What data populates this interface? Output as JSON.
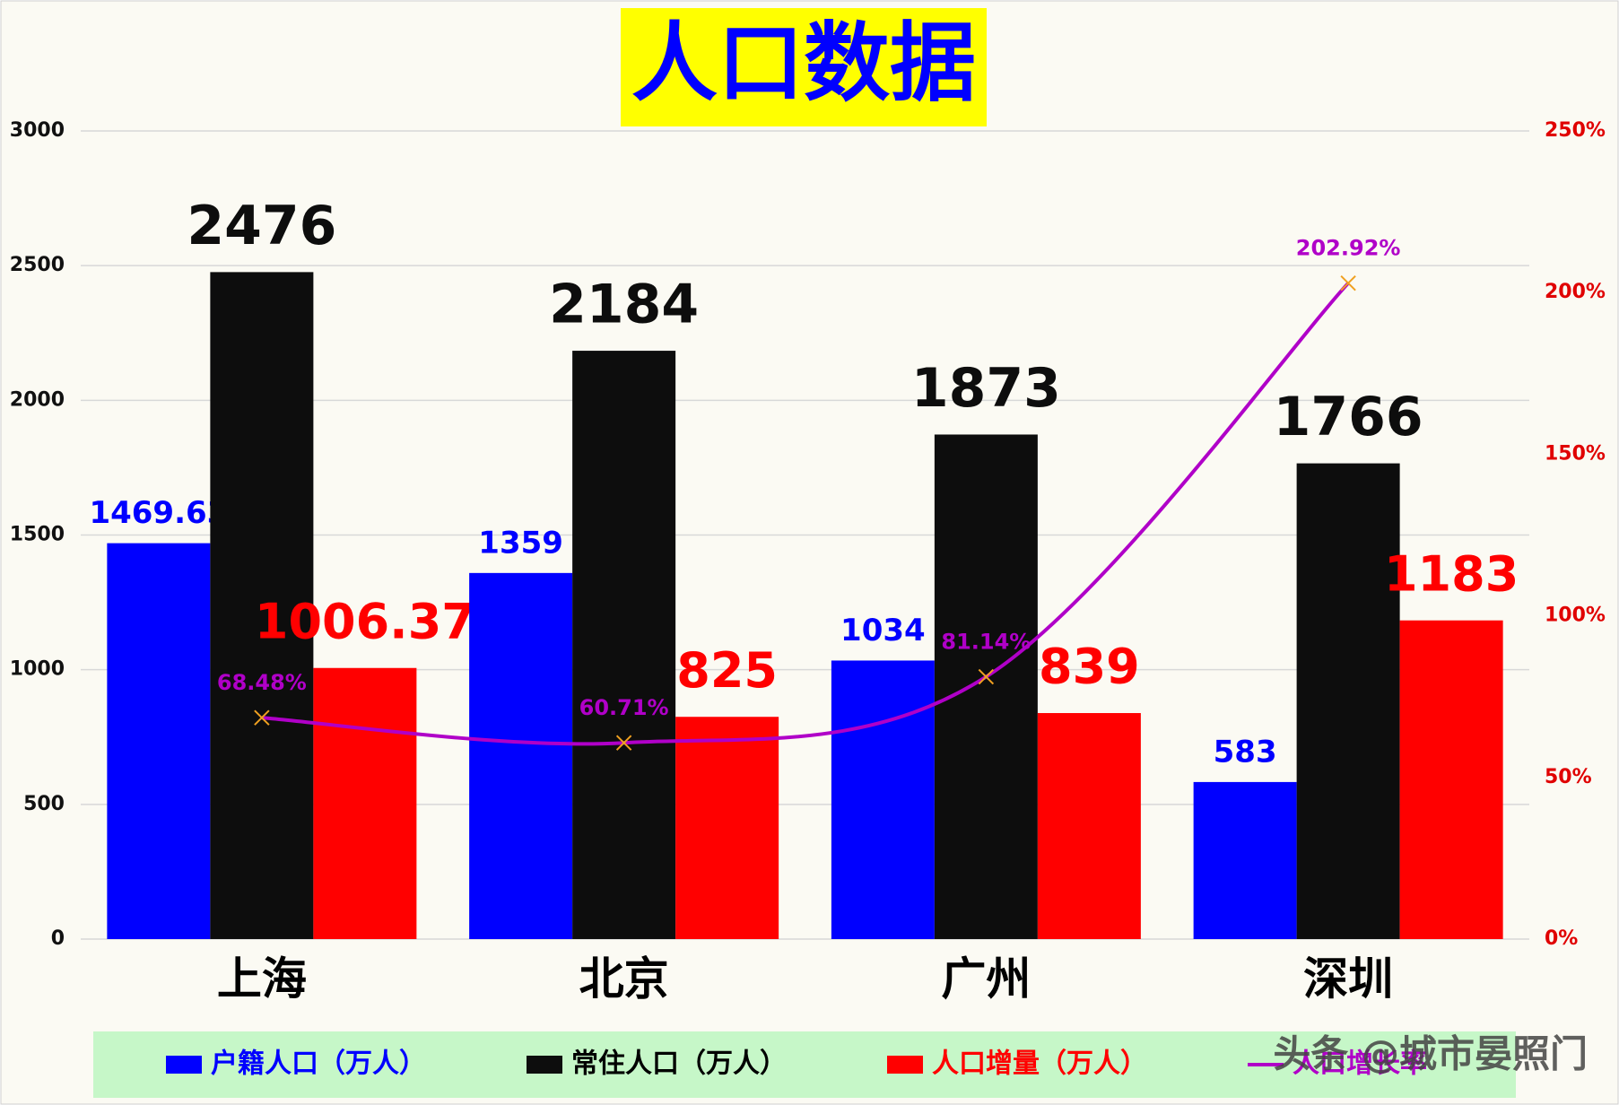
{
  "chart_data": {
    "type": "bar-line",
    "title": "人口数据",
    "categories": [
      "上海",
      "北京",
      "广州",
      "深圳"
    ],
    "series": [
      {
        "name": "户籍人口（万人）",
        "color": "#0000ff",
        "values": [
          1469.63,
          1359,
          1034,
          583
        ]
      },
      {
        "name": "常住人口（万人）",
        "color": "#0d0d0d",
        "values": [
          2476,
          2184,
          1873,
          1766
        ]
      },
      {
        "name": "人口增量（万人）",
        "color": "#ff0000",
        "values": [
          1006.37,
          825,
          839,
          1183
        ]
      },
      {
        "name": "人口增长率",
        "color": "#b000c8",
        "type": "line",
        "axis": "y2",
        "values": [
          68.48,
          60.71,
          81.14,
          202.92
        ],
        "value_labels": [
          "68.48%",
          "60.71%",
          "81.14%",
          "202.92%"
        ]
      }
    ],
    "ylim": [
      0,
      3000
    ],
    "yticks": [
      0,
      500,
      1000,
      1500,
      2000,
      2500,
      3000
    ],
    "y2lim": [
      0,
      250
    ],
    "y2ticks": [
      {
        "value": 0,
        "label": "0%"
      },
      {
        "value": 50,
        "label": "50%"
      },
      {
        "value": 100,
        "label": "100%"
      },
      {
        "value": 150,
        "label": "150%"
      },
      {
        "value": 200,
        "label": "200%"
      },
      {
        "value": 250,
        "label": "250%"
      }
    ],
    "grid": true,
    "legend": "bottom",
    "watermark": "头条 @城市晏照门"
  }
}
